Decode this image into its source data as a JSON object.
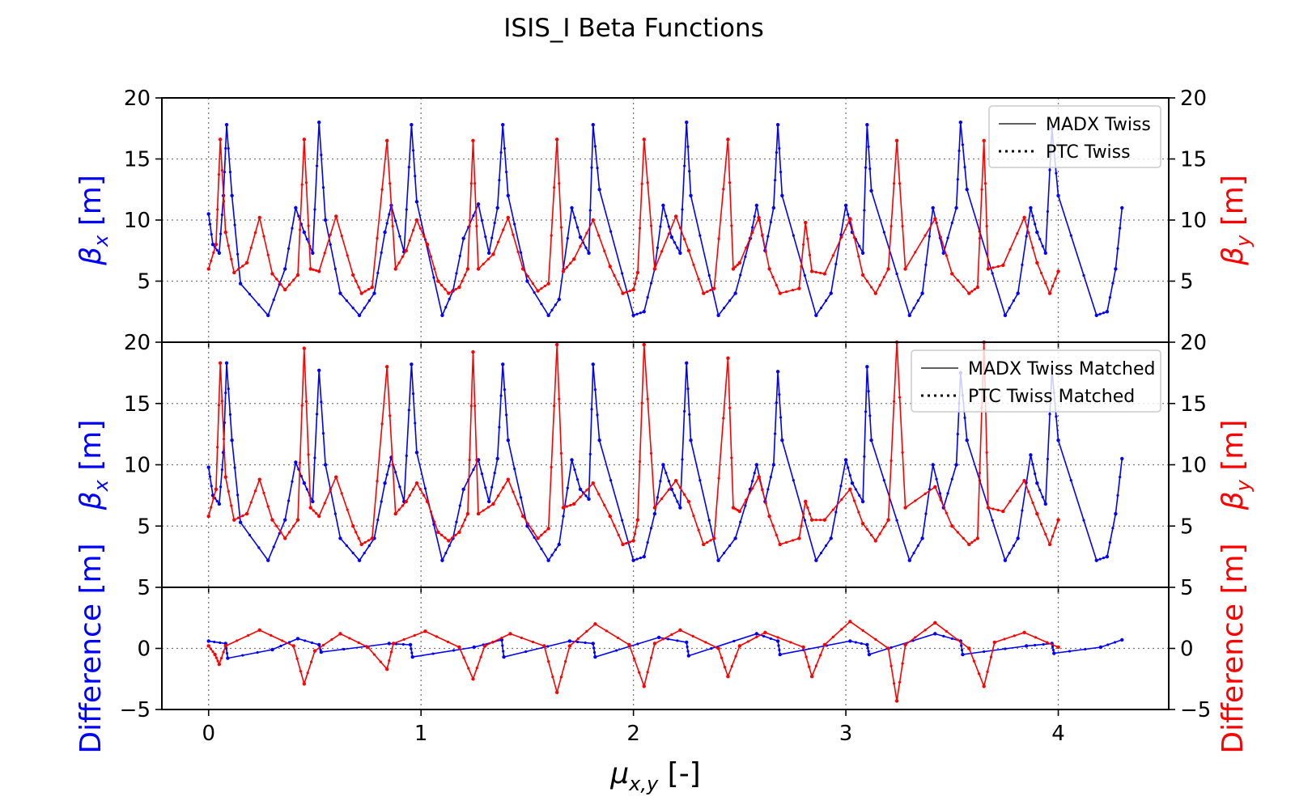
{
  "figure": {
    "title": "ISIS_I Beta Functions",
    "xlabel": "μx,y [-]",
    "xlabel_main": "μ",
    "xlabel_sub": "x,y",
    "xlabel_unit": " [-]"
  },
  "colors": {
    "beta_x": "#0000ff",
    "beta_y": "#ff0000",
    "grid": "#777777",
    "axes": "#000000"
  },
  "chart_data": [
    {
      "type": "line",
      "panel": "top",
      "ylabel_left": "βx [m]",
      "ylabel_right": "βy [m]",
      "ylabel_left_parts": {
        "sym": "β",
        "sub": "x",
        "unit": " [m]"
      },
      "ylabel_right_parts": {
        "sym": "β",
        "sub": "y",
        "unit": " [m]"
      },
      "xlim": [
        -0.22,
        4.52
      ],
      "ylim": [
        0,
        20
      ],
      "yticks": [
        5,
        10,
        15,
        20
      ],
      "ytick_labels": [
        "5",
        "10",
        "15",
        "20"
      ],
      "xticks": [
        0,
        1,
        2,
        3,
        4
      ],
      "grid": true,
      "legend": {
        "placement": "top-right",
        "entries": [
          {
            "label": "MADX Twiss",
            "style": "solid"
          },
          {
            "label": "PTC Twiss",
            "style": "dotted"
          }
        ]
      },
      "series": [
        {
          "key": "beta_x",
          "axis": "left",
          "x": [
            0,
            0.02,
            0.05,
            0.07,
            0.085,
            0.11,
            0.15,
            0.28,
            0.36,
            0.41,
            0.45,
            0.49,
            0.52,
            0.55,
            0.62,
            0.71,
            0.78,
            0.83,
            0.86,
            0.92,
            0.955,
            0.98,
            1.1,
            1.15,
            1.2,
            1.27,
            1.32,
            1.36,
            1.385,
            1.41,
            1.5,
            1.6,
            1.65,
            1.71,
            1.75,
            1.79,
            1.81,
            1.84,
            2.0,
            2.05,
            2.1,
            2.14,
            2.18,
            2.22,
            2.25,
            2.27,
            2.4,
            2.48,
            2.55,
            2.58,
            2.62,
            2.66,
            2.68,
            2.7,
            2.86,
            2.93,
            3.0,
            3.03,
            3.08,
            3.1,
            3.12,
            3.3,
            3.36,
            3.41,
            3.46,
            3.52,
            3.54,
            3.57,
            3.75,
            3.81,
            3.87,
            3.9,
            3.94,
            3.97,
            4.0,
            4.18,
            4.23,
            4.27,
            4.3
          ],
          "y": [
            10.5,
            8,
            7.3,
            12,
            17.8,
            12,
            4.8,
            2.2,
            6,
            11,
            9,
            7.3,
            18,
            10,
            4,
            2.2,
            4,
            9,
            11.2,
            7.4,
            17.8,
            11.5,
            2.2,
            4.2,
            8.5,
            11.3,
            7.3,
            11,
            17.8,
            12,
            5,
            2.2,
            3.5,
            11,
            8.6,
            7.3,
            17.8,
            12.5,
            2.2,
            2.5,
            6,
            11.2,
            8.6,
            7.3,
            18,
            12,
            2.2,
            4,
            8.5,
            11.2,
            7.5,
            11,
            17.8,
            12,
            2.2,
            4,
            11.2,
            9,
            7.3,
            17.8,
            12.4,
            2.2,
            4,
            11,
            7.3,
            11,
            18,
            12.5,
            2.2,
            4,
            11,
            9,
            7.3,
            17.5,
            12,
            2.2,
            2.5,
            6,
            11
          ]
        },
        {
          "key": "beta_y",
          "axis": "right",
          "x": [
            0,
            0.035,
            0.055,
            0.08,
            0.12,
            0.18,
            0.24,
            0.3,
            0.36,
            0.42,
            0.45,
            0.48,
            0.52,
            0.6,
            0.68,
            0.72,
            0.77,
            0.84,
            0.88,
            0.93,
            0.98,
            1.03,
            1.08,
            1.13,
            1.18,
            1.22,
            1.245,
            1.27,
            1.34,
            1.41,
            1.48,
            1.55,
            1.6,
            1.64,
            1.67,
            1.72,
            1.81,
            1.89,
            1.95,
            2.0,
            2.02,
            2.05,
            2.1,
            2.2,
            2.26,
            2.33,
            2.38,
            2.445,
            2.47,
            2.5,
            2.59,
            2.64,
            2.69,
            2.78,
            2.81,
            2.84,
            2.9,
            3.02,
            3.08,
            3.14,
            3.2,
            3.24,
            3.28,
            3.42,
            3.5,
            3.58,
            3.62,
            3.65,
            3.67,
            3.74,
            3.84,
            3.9,
            3.96,
            4.0
          ],
          "y": [
            6,
            8,
            16.6,
            9,
            5.7,
            6.5,
            10.2,
            5.6,
            4.3,
            5.5,
            16.6,
            6,
            5.8,
            10.3,
            5.5,
            4,
            4.5,
            16.5,
            6,
            7.5,
            10,
            8,
            5,
            4,
            4.5,
            6,
            16.5,
            6,
            7.2,
            10.2,
            6,
            4.2,
            4.8,
            16.6,
            5.8,
            6.8,
            10,
            6.2,
            4,
            4.3,
            5.7,
            16.6,
            6,
            10.3,
            7.5,
            4,
            4.4,
            16.6,
            6,
            6.5,
            10.2,
            6,
            4,
            4.4,
            9.8,
            5.8,
            5.6,
            10.1,
            5.5,
            4,
            6,
            16.5,
            6,
            10.1,
            5.6,
            4,
            4.5,
            16.5,
            6,
            6.3,
            10.2,
            6.5,
            4,
            5.8
          ]
        }
      ]
    },
    {
      "type": "line",
      "panel": "middle",
      "ylabel_left": "βx [m]",
      "ylabel_right": "βy [m]",
      "ylabel_left_parts": {
        "sym": "β",
        "sub": "x",
        "unit": " [m]"
      },
      "ylabel_right_parts": {
        "sym": "β",
        "sub": "y",
        "unit": " [m]"
      },
      "xlim": [
        -0.22,
        4.52
      ],
      "ylim": [
        0,
        20
      ],
      "yticks": [
        5,
        10,
        15,
        20
      ],
      "ytick_labels": [
        "5",
        "10",
        "15",
        "20"
      ],
      "xticks": [
        0,
        1,
        2,
        3,
        4
      ],
      "grid": true,
      "legend": {
        "placement": "top-right",
        "entries": [
          {
            "label": "MADX Twiss Matched",
            "style": "solid"
          },
          {
            "label": "PTC Twiss Matched",
            "style": "dotted"
          }
        ]
      },
      "series": [
        {
          "key": "beta_x",
          "axis": "left",
          "x": [
            0,
            0.02,
            0.05,
            0.07,
            0.085,
            0.11,
            0.15,
            0.28,
            0.36,
            0.41,
            0.45,
            0.49,
            0.52,
            0.55,
            0.62,
            0.71,
            0.78,
            0.83,
            0.86,
            0.92,
            0.955,
            0.98,
            1.1,
            1.15,
            1.2,
            1.27,
            1.32,
            1.36,
            1.385,
            1.41,
            1.5,
            1.6,
            1.65,
            1.71,
            1.75,
            1.79,
            1.81,
            1.84,
            2.0,
            2.05,
            2.1,
            2.14,
            2.18,
            2.22,
            2.25,
            2.27,
            2.4,
            2.48,
            2.55,
            2.58,
            2.62,
            2.66,
            2.68,
            2.7,
            2.86,
            2.93,
            3.0,
            3.03,
            3.08,
            3.1,
            3.12,
            3.3,
            3.36,
            3.41,
            3.46,
            3.52,
            3.54,
            3.57,
            3.75,
            3.81,
            3.87,
            3.9,
            3.94,
            3.97,
            4.0,
            4.18,
            4.23,
            4.27,
            4.3
          ],
          "y": [
            9.8,
            7.5,
            6.8,
            11,
            18.3,
            12,
            5.3,
            2.2,
            5.5,
            10.2,
            8.5,
            7,
            17.7,
            10,
            4,
            2.2,
            4,
            8.5,
            10.6,
            7,
            18.2,
            11,
            2.2,
            4,
            8,
            10.4,
            7,
            10.5,
            18.2,
            12,
            5,
            2.2,
            3.5,
            10.4,
            8,
            7.2,
            18.2,
            12,
            2.2,
            2.5,
            6,
            10,
            8,
            6.5,
            18.3,
            12,
            2.2,
            4,
            8,
            10,
            7,
            10,
            17.6,
            12,
            2.2,
            4,
            10.4,
            8.5,
            7,
            18,
            12,
            2.2,
            4,
            10,
            6.5,
            10,
            17.5,
            12,
            2.2,
            4,
            10.8,
            8.5,
            6.8,
            17.8,
            12,
            2.2,
            2.5,
            6,
            10.5
          ]
        },
        {
          "key": "beta_y",
          "axis": "right",
          "x": [
            0,
            0.035,
            0.055,
            0.08,
            0.12,
            0.18,
            0.24,
            0.3,
            0.36,
            0.42,
            0.45,
            0.48,
            0.52,
            0.6,
            0.68,
            0.72,
            0.77,
            0.84,
            0.88,
            0.93,
            0.98,
            1.03,
            1.08,
            1.13,
            1.18,
            1.22,
            1.245,
            1.27,
            1.34,
            1.41,
            1.48,
            1.55,
            1.6,
            1.64,
            1.67,
            1.72,
            1.81,
            1.89,
            1.95,
            2.0,
            2.02,
            2.05,
            2.1,
            2.2,
            2.26,
            2.33,
            2.38,
            2.445,
            2.47,
            2.5,
            2.59,
            2.64,
            2.69,
            2.78,
            2.81,
            2.84,
            2.9,
            3.02,
            3.08,
            3.14,
            3.2,
            3.24,
            3.28,
            3.42,
            3.5,
            3.58,
            3.62,
            3.65,
            3.67,
            3.74,
            3.84,
            3.9,
            3.96,
            4.0
          ],
          "y": [
            5.8,
            8,
            18.3,
            9,
            5.5,
            6,
            8.8,
            5.5,
            4,
            5.5,
            19.5,
            6.5,
            5.8,
            9,
            5,
            3.5,
            4,
            18,
            6,
            7,
            8.5,
            7,
            4.5,
            3.8,
            4.5,
            6,
            19.2,
            6,
            6.8,
            8.8,
            5.8,
            4,
            4.8,
            19.8,
            6.5,
            6.8,
            8.5,
            5.8,
            3.5,
            3.8,
            5.5,
            19.8,
            6.5,
            8.7,
            7,
            3.5,
            4,
            18.7,
            6.5,
            6.2,
            9,
            5.8,
            3.5,
            4,
            7,
            5.5,
            5.5,
            8,
            5.2,
            3.8,
            5.5,
            20,
            6.5,
            8.2,
            5,
            3.5,
            4,
            20,
            6.5,
            6.2,
            8.7,
            6,
            3.5,
            5.5
          ]
        }
      ]
    },
    {
      "type": "line",
      "panel": "bottom",
      "ylabel_left": "Difference [m]",
      "ylabel_right": "Difference [m]",
      "xlim": [
        -0.22,
        4.52
      ],
      "ylim": [
        -5,
        5
      ],
      "yticks": [
        -5,
        0,
        5
      ],
      "ytick_labels": [
        "−5",
        "0",
        "5"
      ],
      "xticks": [
        0,
        1,
        2,
        3,
        4
      ],
      "xtick_labels": [
        "0",
        "1",
        "2",
        "3",
        "4"
      ],
      "grid": true,
      "series": [
        {
          "key": "beta_x",
          "axis": "left",
          "x": [
            0,
            0.08,
            0.09,
            0.3,
            0.42,
            0.52,
            0.53,
            0.85,
            0.95,
            0.96,
            1.25,
            1.38,
            1.39,
            1.7,
            1.81,
            1.82,
            2.12,
            2.25,
            2.26,
            2.58,
            2.68,
            2.69,
            3.02,
            3.1,
            3.11,
            3.42,
            3.54,
            3.55,
            3.85,
            3.97,
            3.98,
            4.2,
            4.3
          ],
          "y": [
            0.6,
            0.4,
            -0.8,
            -0.1,
            0.8,
            0.3,
            -0.3,
            0.4,
            0.3,
            -0.7,
            0.1,
            0.7,
            -0.7,
            0.6,
            0.4,
            -0.7,
            0.9,
            0.5,
            -0.6,
            1.2,
            0.6,
            -0.5,
            0.6,
            0.3,
            -0.5,
            1.2,
            0.6,
            -0.5,
            0.2,
            0.4,
            -0.4,
            0.1,
            0.7
          ]
        },
        {
          "key": "beta_y",
          "axis": "right",
          "x": [
            0,
            0.03,
            0.05,
            0.08,
            0.24,
            0.4,
            0.45,
            0.5,
            0.62,
            0.75,
            0.84,
            0.87,
            1.02,
            1.18,
            1.245,
            1.3,
            1.42,
            1.58,
            1.64,
            1.7,
            1.82,
            1.98,
            2.05,
            2.1,
            2.22,
            2.4,
            2.445,
            2.5,
            2.62,
            2.8,
            2.84,
            2.9,
            3.02,
            3.2,
            3.24,
            3.28,
            3.42,
            3.58,
            3.65,
            3.7,
            3.84,
            4.0
          ],
          "y": [
            0.2,
            -0.5,
            -1.3,
            0.2,
            1.5,
            0.2,
            -2.9,
            -0.2,
            1.2,
            0.1,
            -1.7,
            0.4,
            1.4,
            0.1,
            -2.5,
            0.2,
            1.2,
            0.2,
            -3.6,
            0.2,
            2,
            0.3,
            -3.1,
            0.4,
            1.5,
            0,
            -2.3,
            0.2,
            1.3,
            0.1,
            -2.3,
            0.3,
            2.2,
            0,
            -4.3,
            0.3,
            2.1,
            0,
            -3.1,
            0.5,
            1.3,
            0.1
          ]
        }
      ]
    }
  ]
}
